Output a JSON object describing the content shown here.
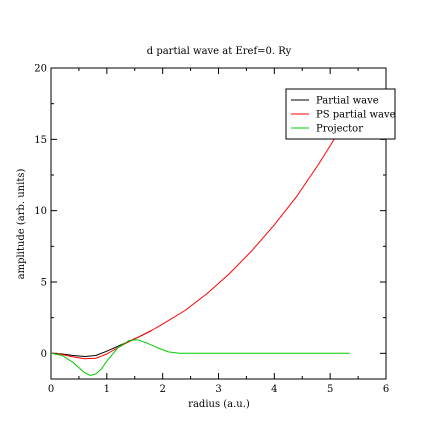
{
  "chart_data": {
    "type": "line",
    "title": "d partial wave at Eref=0. Ry",
    "xlabel": "radius (a.u.)",
    "ylabel": "amplitude (arb. units)",
    "xlim": [
      0,
      6
    ],
    "ylim": [
      -1.8,
      20
    ],
    "xticks": [
      0,
      1,
      2,
      3,
      4,
      5,
      6
    ],
    "yticks": [
      0,
      5,
      10,
      15,
      20
    ],
    "xtick_labels": [
      "0",
      "1",
      "2",
      "3",
      "4",
      "5",
      "6"
    ],
    "ytick_labels": [
      "0",
      "5",
      "10",
      "15",
      "20"
    ],
    "grid": false,
    "legend_position": "top-right",
    "series": [
      {
        "name": "Partial wave",
        "color": "#000000",
        "x": [
          0,
          0.2,
          0.4,
          0.6,
          0.8,
          1.0,
          1.2,
          1.4,
          1.6,
          1.8
        ],
        "y": [
          0,
          -0.05,
          -0.15,
          -0.22,
          -0.15,
          0.15,
          0.5,
          0.85,
          1.2,
          1.6
        ]
      },
      {
        "name": "PS partial wave",
        "color": "#ff0000",
        "x": [
          0,
          0.2,
          0.4,
          0.6,
          0.8,
          1.0,
          1.2,
          1.4,
          1.6,
          1.8,
          2.0,
          2.4,
          2.8,
          3.2,
          3.6,
          4.0,
          4.4,
          4.8,
          5.2,
          5.4
        ],
        "y": [
          0,
          -0.08,
          -0.25,
          -0.38,
          -0.35,
          -0.05,
          0.4,
          0.82,
          1.2,
          1.6,
          2.05,
          3.0,
          4.2,
          5.6,
          7.2,
          9.0,
          11.0,
          13.3,
          15.8,
          17.1
        ]
      },
      {
        "name": "Projector",
        "color": "#00cc00",
        "x": [
          0,
          0.2,
          0.4,
          0.5,
          0.6,
          0.7,
          0.8,
          0.9,
          1.0,
          1.2,
          1.4,
          1.55,
          1.7,
          1.9,
          2.1,
          2.3,
          2.5,
          3.0,
          4.0,
          5.0,
          5.35
        ],
        "y": [
          0,
          -0.15,
          -0.65,
          -1.0,
          -1.35,
          -1.55,
          -1.45,
          -1.1,
          -0.55,
          0.4,
          0.9,
          0.95,
          0.75,
          0.4,
          0.1,
          0.0,
          0.0,
          0.0,
          0.0,
          0.0,
          0.0
        ]
      }
    ]
  }
}
